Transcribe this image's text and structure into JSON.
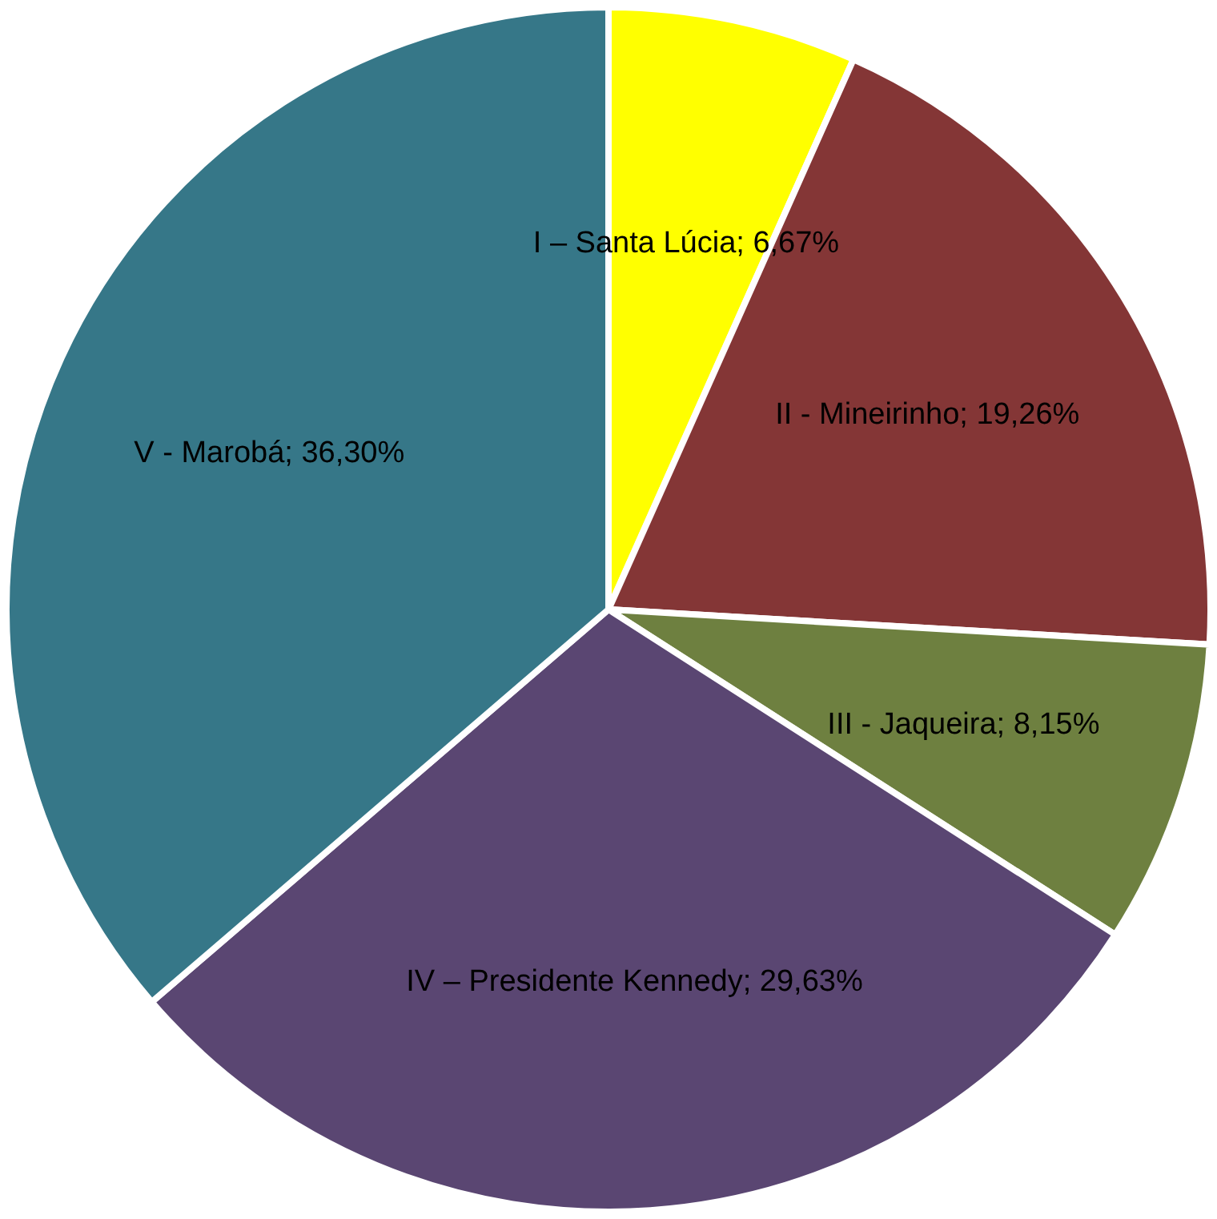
{
  "chart_data": {
    "type": "pie",
    "categories": [
      "I – Santa Lúcia",
      "II - Mineirinho",
      "III - Jaqueira",
      "IV – Presidente Kennedy",
      "V - Marobá"
    ],
    "values": [
      6.67,
      19.26,
      8.15,
      29.63,
      36.3
    ],
    "value_labels": [
      "6,67%",
      "19,26%",
      "8,15%",
      "29,63%",
      "36,30%"
    ],
    "colors": [
      "#ffff00",
      "#843636",
      "#6e8040",
      "#5a4672",
      "#367788"
    ],
    "legend": false
  }
}
